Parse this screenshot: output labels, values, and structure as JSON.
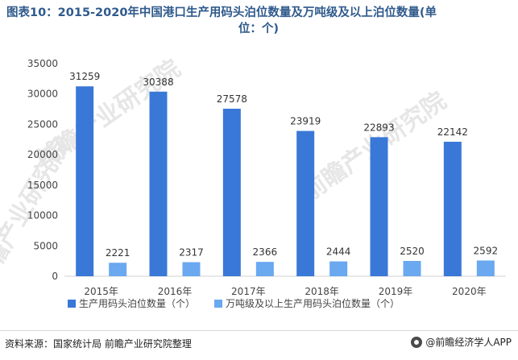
{
  "title": {
    "line1": "图表10：2015-2020年中国港口生产用码头泊位数量及万吨级及以上泊位数量(单",
    "line2": "位：个)"
  },
  "chart_data": {
    "type": "bar",
    "categories": [
      "2015年",
      "2016年",
      "2017年",
      "2018年",
      "2019年",
      "2020年"
    ],
    "series": [
      {
        "name": "生产用码头泊位数量（个）",
        "values": [
          31259,
          30388,
          27578,
          23919,
          22893,
          22142
        ],
        "color": "#3a78d8"
      },
      {
        "name": "万吨级及以上生产用码头泊位数量（个）",
        "values": [
          2221,
          2317,
          2366,
          2444,
          2520,
          2592
        ],
        "color": "#6aa8f0"
      }
    ],
    "y_ticks": [
      0,
      5000,
      10000,
      15000,
      20000,
      25000,
      30000,
      35000
    ],
    "ylim": [
      0,
      35000
    ],
    "legend_position": "bottom",
    "grid": false
  },
  "footer": {
    "source": "资料来源：国家统计局 前瞻产业研究院整理",
    "brand": "@前瞻经济学人APP"
  },
  "watermark": "前瞻产业研究院"
}
